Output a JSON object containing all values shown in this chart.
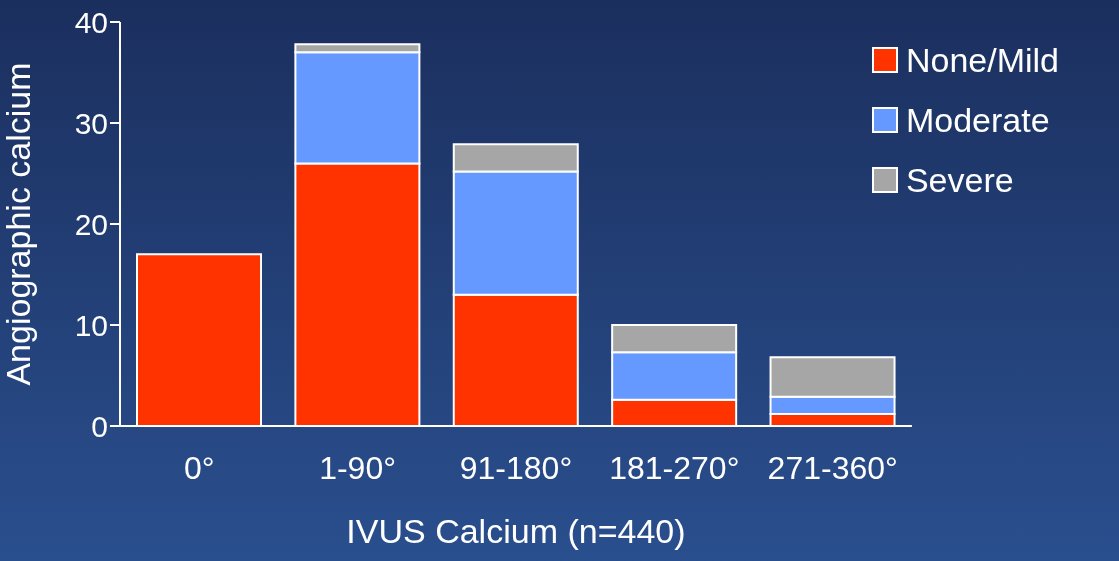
{
  "chart_data": {
    "type": "bar",
    "stacked": true,
    "xlabel": "IVUS Calcium (n=440)",
    "ylabel": "Angiographic calcium",
    "categories": [
      "0°",
      "1-90°",
      "91-180°",
      "181-270°",
      "271-360°"
    ],
    "series": [
      {
        "name": "None/Mild",
        "color": "#ff3300",
        "values": [
          17,
          26,
          13,
          2.6,
          1.2
        ]
      },
      {
        "name": "Moderate",
        "color": "#6699ff",
        "values": [
          0,
          11,
          12.2,
          4.7,
          1.7
        ]
      },
      {
        "name": "Severe",
        "color": "#a6a6a6",
        "values": [
          0,
          0.8,
          2.7,
          2.7,
          3.9
        ]
      }
    ],
    "ylim": [
      0,
      40
    ],
    "yticks": [
      0,
      10,
      20,
      30,
      40
    ],
    "grid": false,
    "legend": "top right"
  }
}
